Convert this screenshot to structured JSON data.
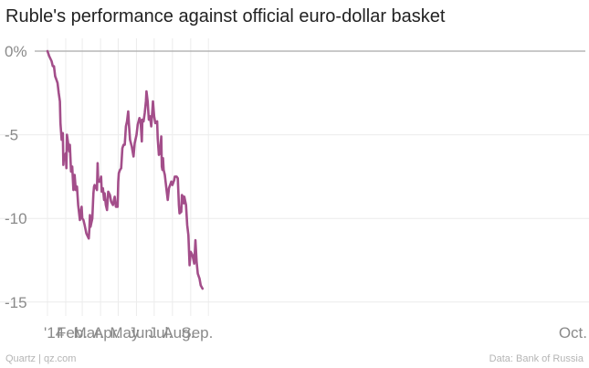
{
  "title": "Ruble's performance against official euro-dollar basket",
  "footer": {
    "source_left": "Quartz | qz.com",
    "source_right": "Data: Bank of Russia"
  },
  "colors": {
    "line": "#a34e8a",
    "grid": "#ececec",
    "zero_line": "#a9a9a9",
    "tick_text": "#8a8a8a",
    "title_text": "#222222"
  },
  "chart_data": {
    "type": "line",
    "title": "Ruble's performance against official euro-dollar basket",
    "xlabel": "",
    "ylabel": "",
    "x_tick_labels": [
      "'14",
      "Feb.",
      "Mar.",
      "Apr.",
      "May",
      "Jun.",
      "Jul.",
      "Aug.",
      "Sep.",
      "Oct."
    ],
    "y_ticks": [
      0,
      -5,
      -10,
      -15
    ],
    "y_tick_labels": [
      "0%",
      "-5",
      "-10",
      "-15"
    ],
    "ylim": [
      -15.5,
      0.5
    ],
    "xlim": [
      "2014-01-01",
      "2014-10-03"
    ],
    "grid": true,
    "legend": "none",
    "series": [
      {
        "points": [
          [
            "2014-01-01",
            0.0
          ],
          [
            "2014-01-04",
            -0.3
          ],
          [
            "2014-01-08",
            -0.6
          ],
          [
            "2014-01-10",
            -0.9
          ],
          [
            "2014-01-12",
            -0.9
          ],
          [
            "2014-01-14",
            -1.5
          ],
          [
            "2014-01-16",
            -1.7
          ],
          [
            "2014-01-18",
            -1.9
          ],
          [
            "2014-01-20",
            -2.5
          ],
          [
            "2014-01-22",
            -3.0
          ],
          [
            "2014-01-23",
            -4.3
          ],
          [
            "2014-01-25",
            -5.3
          ],
          [
            "2014-01-27",
            -4.9
          ],
          [
            "2014-01-28",
            -6.8
          ],
          [
            "2014-01-29",
            -6.2
          ],
          [
            "2014-01-31",
            -6.3
          ],
          [
            "2014-02-01",
            -6.1
          ],
          [
            "2014-02-02",
            -7.0
          ],
          [
            "2014-02-03",
            -5.0
          ],
          [
            "2014-02-05",
            -5.5
          ],
          [
            "2014-02-07",
            -6.0
          ],
          [
            "2014-02-08",
            -5.6
          ],
          [
            "2014-02-10",
            -7.2
          ],
          [
            "2014-02-12",
            -6.9
          ],
          [
            "2014-02-14",
            -8.3
          ],
          [
            "2014-02-16",
            -7.4
          ],
          [
            "2014-02-18",
            -8.3
          ],
          [
            "2014-02-20",
            -8.1
          ],
          [
            "2014-02-22",
            -9.2
          ],
          [
            "2014-02-25",
            -10.1
          ],
          [
            "2014-02-27",
            -9.5
          ],
          [
            "2014-02-28",
            -9.3
          ],
          [
            "2014-03-01",
            -10.0
          ],
          [
            "2014-03-03",
            -10.1
          ],
          [
            "2014-03-05",
            -10.4
          ],
          [
            "2014-03-08",
            -10.9
          ],
          [
            "2014-03-12",
            -11.2
          ],
          [
            "2014-03-13",
            -10.7
          ],
          [
            "2014-03-14",
            -9.8
          ],
          [
            "2014-03-15",
            -10.5
          ],
          [
            "2014-03-18",
            -10.0
          ],
          [
            "2014-03-20",
            -8.5
          ],
          [
            "2014-03-21",
            -8.1
          ],
          [
            "2014-03-22",
            -8.0
          ],
          [
            "2014-03-26",
            -8.3
          ],
          [
            "2014-03-27",
            -6.7
          ],
          [
            "2014-03-28",
            -7.8
          ],
          [
            "2014-03-31",
            -7.8
          ],
          [
            "2014-04-02",
            -7.5
          ],
          [
            "2014-04-03",
            -8.4
          ],
          [
            "2014-04-05",
            -8.2
          ],
          [
            "2014-04-07",
            -8.9
          ],
          [
            "2014-04-08",
            -8.5
          ],
          [
            "2014-04-10",
            -9.2
          ],
          [
            "2014-04-12",
            -9.5
          ],
          [
            "2014-04-14",
            -8.4
          ],
          [
            "2014-04-17",
            -8.6
          ],
          [
            "2014-04-19",
            -9.0
          ],
          [
            "2014-04-22",
            -9.2
          ],
          [
            "2014-04-25",
            -8.7
          ],
          [
            "2014-04-27",
            -9.3
          ],
          [
            "2014-04-30",
            -9.3
          ],
          [
            "2014-05-01",
            -7.8
          ],
          [
            "2014-05-02",
            -7.3
          ],
          [
            "2014-05-04",
            -7.1
          ],
          [
            "2014-05-06",
            -7.0
          ],
          [
            "2014-05-08",
            -5.8
          ],
          [
            "2014-05-10",
            -5.6
          ],
          [
            "2014-05-12",
            -5.6
          ],
          [
            "2014-05-14",
            -4.5
          ],
          [
            "2014-05-16",
            -4.2
          ],
          [
            "2014-05-18",
            -3.6
          ],
          [
            "2014-05-19",
            -4.3
          ],
          [
            "2014-05-21",
            -5.3
          ],
          [
            "2014-05-24",
            -5.7
          ],
          [
            "2014-05-27",
            -6.3
          ],
          [
            "2014-05-29",
            -5.5
          ],
          [
            "2014-06-01",
            -5.0
          ],
          [
            "2014-06-03",
            -4.4
          ],
          [
            "2014-06-06",
            -4.0
          ],
          [
            "2014-06-08",
            -4.2
          ],
          [
            "2014-06-10",
            -5.4
          ],
          [
            "2014-06-11",
            -4.1
          ],
          [
            "2014-06-13",
            -4.2
          ],
          [
            "2014-06-15",
            -3.7
          ],
          [
            "2014-06-17",
            -3.0
          ],
          [
            "2014-06-18",
            -2.4
          ],
          [
            "2014-06-20",
            -3.0
          ],
          [
            "2014-06-22",
            -4.1
          ],
          [
            "2014-06-24",
            -3.9
          ],
          [
            "2014-06-26",
            -4.5
          ],
          [
            "2014-06-28",
            -3.5
          ],
          [
            "2014-06-29",
            -3.0
          ],
          [
            "2014-07-01",
            -3.9
          ],
          [
            "2014-07-03",
            -4.3
          ],
          [
            "2014-07-06",
            -4.2
          ],
          [
            "2014-07-07",
            -5.2
          ],
          [
            "2014-07-09",
            -6.2
          ],
          [
            "2014-07-11",
            -6.1
          ],
          [
            "2014-07-13",
            -5.1
          ],
          [
            "2014-07-14",
            -6.9
          ],
          [
            "2014-07-15",
            -7.1
          ],
          [
            "2014-07-16",
            -6.4
          ],
          [
            "2014-07-17",
            -7.1
          ],
          [
            "2014-07-19",
            -7.4
          ],
          [
            "2014-07-22",
            -8.3
          ],
          [
            "2014-07-24",
            -8.9
          ],
          [
            "2014-07-26",
            -8.2
          ],
          [
            "2014-07-30",
            -7.8
          ],
          [
            "2014-08-01",
            -8.0
          ],
          [
            "2014-08-04",
            -7.7
          ],
          [
            "2014-08-05",
            -7.5
          ],
          [
            "2014-08-08",
            -7.5
          ],
          [
            "2014-08-10",
            -7.6
          ],
          [
            "2014-08-12",
            -9.2
          ],
          [
            "2014-08-13",
            -9.7
          ],
          [
            "2014-08-16",
            -9.6
          ],
          [
            "2014-08-17",
            -8.6
          ],
          [
            "2014-08-19",
            -8.7
          ],
          [
            "2014-08-20",
            -9.1
          ],
          [
            "2014-08-21",
            -8.7
          ],
          [
            "2014-08-24",
            -9.2
          ],
          [
            "2014-08-26",
            -10.4
          ],
          [
            "2014-08-28",
            -11.0
          ],
          [
            "2014-08-30",
            -12.8
          ],
          [
            "2014-09-01",
            -12.0
          ],
          [
            "2014-09-04",
            -12.2
          ],
          [
            "2014-09-07",
            -12.7
          ],
          [
            "2014-09-08",
            -12.0
          ],
          [
            "2014-09-09",
            -11.3
          ],
          [
            "2014-09-11",
            -12.6
          ],
          [
            "2014-09-13",
            -13.3
          ],
          [
            "2014-09-16",
            -13.6
          ],
          [
            "2014-09-18",
            -14.0
          ],
          [
            "2014-09-21",
            -14.2
          ]
        ]
      }
    ]
  }
}
